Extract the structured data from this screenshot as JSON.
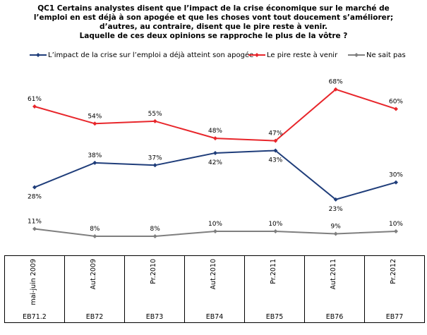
{
  "chart_data": {
    "type": "line",
    "title_lines": [
      "QC1 Certains analystes disent que l’impact de la crise économique sur le marché de",
      "l’emploi  en est déjà à son apogée et que les choses vont tout doucement s’améliorer;",
      "d’autres, au contraire, disent que le pire reste à venir.",
      "Laquelle de ces deux opinions  se rapproche le plus de la vôtre ?"
    ],
    "categories": [
      "mai-juin 2009",
      "Aut.2009",
      "Pr.2010",
      "Aut.2010",
      "Pr.2011",
      "Aut.2011",
      "Pr.2012"
    ],
    "waves": [
      "EB71.2",
      "EB72",
      "EB73",
      "EB74",
      "EB75",
      "EB76",
      "EB77"
    ],
    "series": [
      {
        "name": "L’impact de la crise sur l’emploi a déjà atteint son apogée",
        "color": "#1f3d7a",
        "values": [
          28,
          38,
          37,
          42,
          43,
          23,
          30
        ],
        "labels": [
          "28%",
          "38%",
          "37%",
          "42%",
          "43%",
          "23%",
          "30%"
        ]
      },
      {
        "name": "Le pire reste à venir",
        "color": "#e8262b",
        "values": [
          61,
          54,
          55,
          48,
          47,
          68,
          60
        ],
        "labels": [
          "61%",
          "54%",
          "55%",
          "48%",
          "47%",
          "68%",
          "60%"
        ]
      },
      {
        "name": "Ne sait pas",
        "color": "#7f7f7f",
        "values": [
          11,
          8,
          8,
          10,
          10,
          9,
          10
        ],
        "labels": [
          "11%",
          "8%",
          "8%",
          "10%",
          "10%",
          "9%",
          "10%"
        ]
      }
    ],
    "ylim": [
      0,
      75
    ],
    "grid": false,
    "legend_position": "top"
  }
}
